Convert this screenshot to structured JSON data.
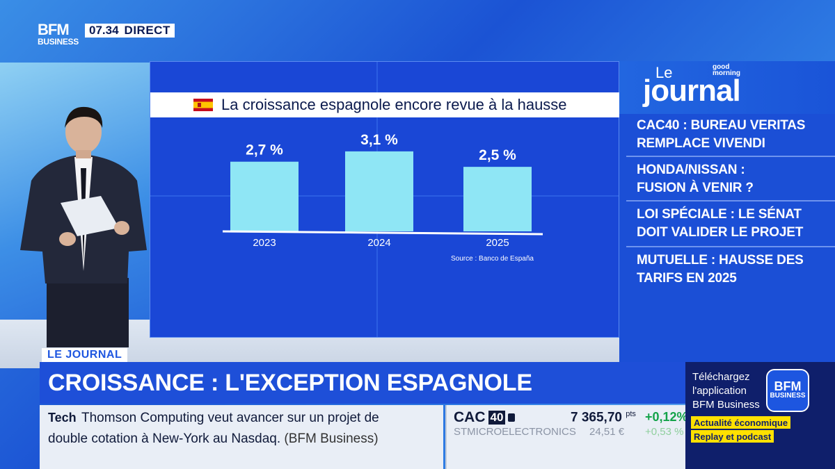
{
  "header": {
    "logo_top": "BFM",
    "logo_bottom": "BUSINESS",
    "time": "07.34",
    "live_label": "DIRECT"
  },
  "chart_data": {
    "type": "bar",
    "title": "La croissance espagnole encore revue à la hausse",
    "categories": [
      "2023",
      "2024",
      "2025"
    ],
    "values": [
      2.7,
      3.1,
      2.5
    ],
    "value_labels": [
      "2,7 %",
      "3,1 %",
      "2,5 %"
    ],
    "source": "Source : Banco de España",
    "xlabel": "",
    "ylabel": "",
    "ylim": [
      0,
      3.5
    ],
    "bar_color": "#8fe6f5",
    "grid": false
  },
  "journal": {
    "le": "Le",
    "title": "journal",
    "show_line1": "good",
    "show_line2": "morning",
    "headlines": [
      {
        "line1": "CAC40 : BUREAU VERITAS",
        "line2": "REMPLACE VIVENDI"
      },
      {
        "line1": "HONDA/NISSAN :",
        "line2": "FUSION À VENIR ?"
      },
      {
        "line1": "LOI SPÉCIALE : LE SÉNAT",
        "line2": "DOIT VALIDER LE PROJET"
      },
      {
        "line1": "MUTUELLE : HAUSSE DES",
        "line2": "TARIFS EN 2025"
      }
    ]
  },
  "lower_third": {
    "tag": "LE JOURNAL",
    "headline": "CROISSANCE : L'EXCEPTION ESPAGNOLE"
  },
  "ticker": {
    "category": "Tech",
    "line1": "Thomson Computing veut avancer sur un projet de",
    "line2": "double cotation à New-York au Nasdaq.",
    "source": "(BFM Business)"
  },
  "market": {
    "index_name": "CAC",
    "index_num": "40",
    "value": "7 365,70",
    "unit": "pts",
    "change": "+0,12%",
    "sub_name": "STMICROELECTRONICS",
    "sub_value": "24,51 €",
    "sub_change": "+0,53 %"
  },
  "promo": {
    "line1": "Téléchargez",
    "line2": "l'application",
    "line3": "BFM Business",
    "app_top": "BFM",
    "app_bottom": "BUSINESS",
    "chip1": "Actualité économique",
    "chip2": "Replay et podcast"
  }
}
